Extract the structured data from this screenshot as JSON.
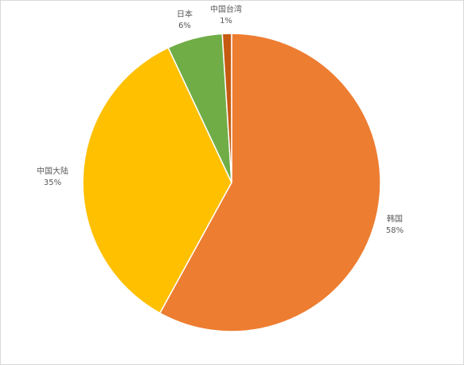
{
  "chart_data": {
    "type": "pie",
    "title": "",
    "slices": [
      {
        "label": "韩国",
        "value": 58,
        "value_label": "58%",
        "color": "#ED7D31"
      },
      {
        "label": "中国大陆",
        "value": 35,
        "value_label": "35%",
        "color": "#FFC000"
      },
      {
        "label": "日本",
        "value": 6,
        "value_label": "6%",
        "color": "#70AD47"
      },
      {
        "label": "中国台湾",
        "value": 1,
        "value_label": "1%",
        "color": "#C55A11"
      }
    ],
    "legend": "none",
    "start": "top",
    "direction": "clockwise"
  }
}
